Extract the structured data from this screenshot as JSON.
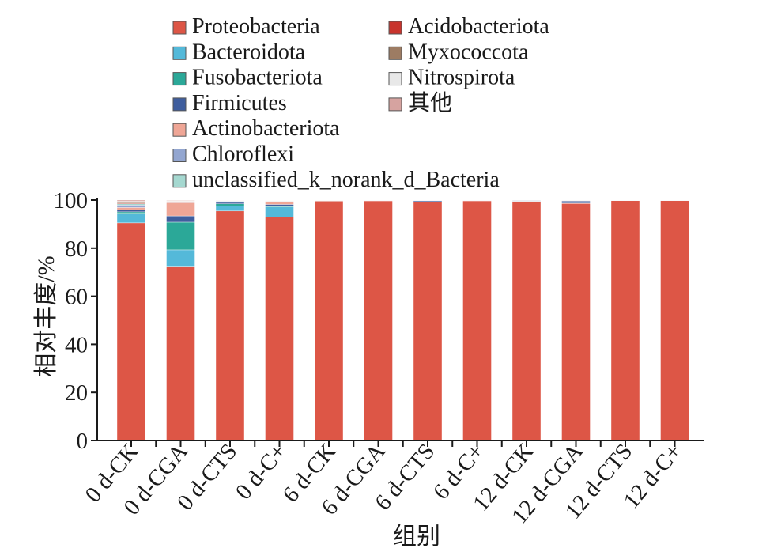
{
  "chart_data": {
    "type": "bar",
    "stacked": true,
    "title": "",
    "xlabel": "组别",
    "ylabel": "相对丰度/%",
    "ylim": [
      0,
      100
    ],
    "yticks": [
      0,
      20,
      40,
      60,
      80,
      100
    ],
    "legend_position": "top",
    "categories": [
      "0 d-CK",
      "0 d-CGA",
      "0 d-CTS",
      "0 d-C+",
      "6 d-CK",
      "6 d-CGA",
      "6 d-CTS",
      "6 d-C+",
      "12 d-CK",
      "12 d-CGA",
      "12 d-CTS",
      "12 d-C+"
    ],
    "series": [
      {
        "name": "Proteobacteria",
        "color": "#DD5646",
        "values": [
          90.5,
          72.5,
          95.5,
          93.0,
          99.6,
          99.7,
          99.2,
          99.7,
          99.5,
          98.6,
          99.8,
          99.8
        ]
      },
      {
        "name": "Bacteroidota",
        "color": "#54B9D9",
        "values": [
          4.0,
          6.8,
          2.0,
          4.2,
          0.1,
          0.05,
          0.1,
          0.05,
          0.1,
          0.1,
          0.05,
          0.05
        ]
      },
      {
        "name": "Fusobacteriota",
        "color": "#2BA898",
        "values": [
          0.6,
          11.5,
          1.0,
          0.3,
          0.05,
          0.05,
          0.05,
          0.05,
          0.05,
          0.05,
          0.02,
          0.02
        ]
      },
      {
        "name": "Firmicutes",
        "color": "#3F5E9E",
        "values": [
          0.9,
          2.6,
          0.6,
          0.7,
          0.05,
          0.05,
          0.4,
          0.05,
          0.2,
          0.9,
          0.02,
          0.02
        ]
      },
      {
        "name": "Actinobacteriota",
        "color": "#EFA696",
        "values": [
          0.9,
          5.5,
          0.4,
          1.0,
          0.05,
          0.05,
          0.05,
          0.05,
          0.05,
          0.1,
          0.02,
          0.02
        ]
      },
      {
        "name": "Chloroflexi",
        "color": "#93A6D0",
        "values": [
          1.0,
          0.2,
          0.2,
          0.2,
          0.05,
          0.03,
          0.05,
          0.03,
          0.03,
          0.05,
          0.02,
          0.02
        ]
      },
      {
        "name": "unclassified_k_norank_d_Bacteria",
        "color": "#A5D8D0",
        "values": [
          0.6,
          0.2,
          0.1,
          0.2,
          0.03,
          0.02,
          0.05,
          0.02,
          0.02,
          0.05,
          0.02,
          0.02
        ]
      },
      {
        "name": "Acidobacteriota",
        "color": "#C8342D",
        "values": [
          0.3,
          0.1,
          0.05,
          0.1,
          0.02,
          0.02,
          0.02,
          0.02,
          0.02,
          0.05,
          0.02,
          0.02
        ]
      },
      {
        "name": "Myxococcota",
        "color": "#9D7C63",
        "values": [
          0.3,
          0.2,
          0.05,
          0.1,
          0.02,
          0.02,
          0.02,
          0.02,
          0.02,
          0.05,
          0.02,
          0.02
        ]
      },
      {
        "name": "Nitrospirota",
        "color": "#E8E8E8",
        "values": [
          0.4,
          0.2,
          0.05,
          0.1,
          0.02,
          0.02,
          0.02,
          0.02,
          0.02,
          0.02,
          0.02,
          0.02
        ]
      },
      {
        "name": "其他",
        "color": "#D6A3A0",
        "values": [
          0.5,
          0.2,
          0.1,
          0.1,
          0.01,
          0.01,
          0.02,
          0.01,
          0.01,
          0.05,
          0.01,
          0.01
        ]
      }
    ]
  }
}
